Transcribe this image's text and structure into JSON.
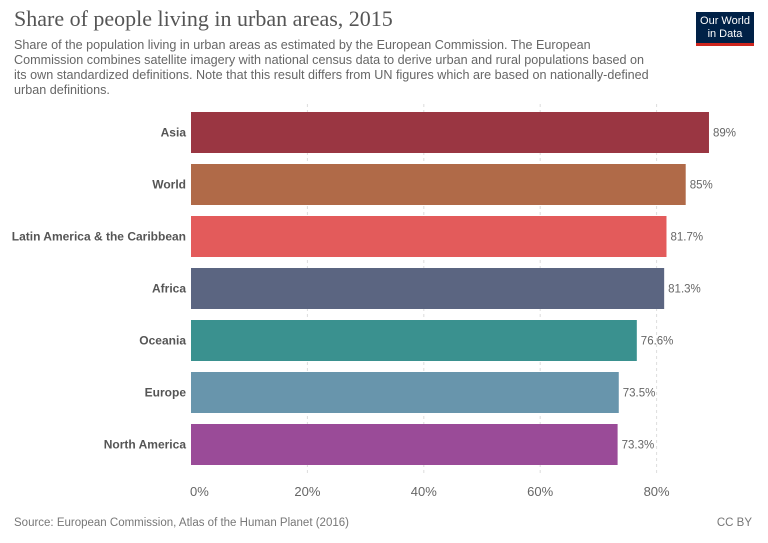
{
  "title": "Share of people living in urban areas, 2015",
  "subtitle": "Share of the population living in urban areas as estimated by the European Commission. The European Commission combines satellite imagery with national census data to derive urban and rural populations based on its own standardized definitions. Note that this result differs from UN figures which are based on nationally-defined urban definitions.",
  "logo": {
    "line1": "Our World",
    "line2": "in Data",
    "bg": "#002147",
    "accent": "#ce261e"
  },
  "source": "Source: European Commission, Atlas of the Human Planet (2016)",
  "license": "CC BY",
  "chart_data": {
    "type": "bar",
    "orientation": "horizontal",
    "title": "Share of people living in urban areas, 2015",
    "xlabel": "",
    "ylabel": "",
    "xlim": [
      0,
      90
    ],
    "grid": true,
    "ticks": [
      "0%",
      "20%",
      "40%",
      "60%",
      "80%"
    ],
    "tick_values": [
      0,
      20,
      40,
      60,
      80
    ],
    "categories": [
      "Asia",
      "World",
      "Latin America & the Caribbean",
      "Africa",
      "Oceania",
      "Europe",
      "North America"
    ],
    "values": [
      89,
      85,
      81.7,
      81.3,
      76.6,
      73.5,
      73.3
    ],
    "value_labels": [
      "89%",
      "85%",
      "81.7%",
      "81.3%",
      "76.6%",
      "73.5%",
      "73.3%"
    ],
    "colors": [
      "#9a3642",
      "#b06a48",
      "#e35b5b",
      "#5b6581",
      "#3a918f",
      "#6895ac",
      "#9a4b98"
    ]
  }
}
